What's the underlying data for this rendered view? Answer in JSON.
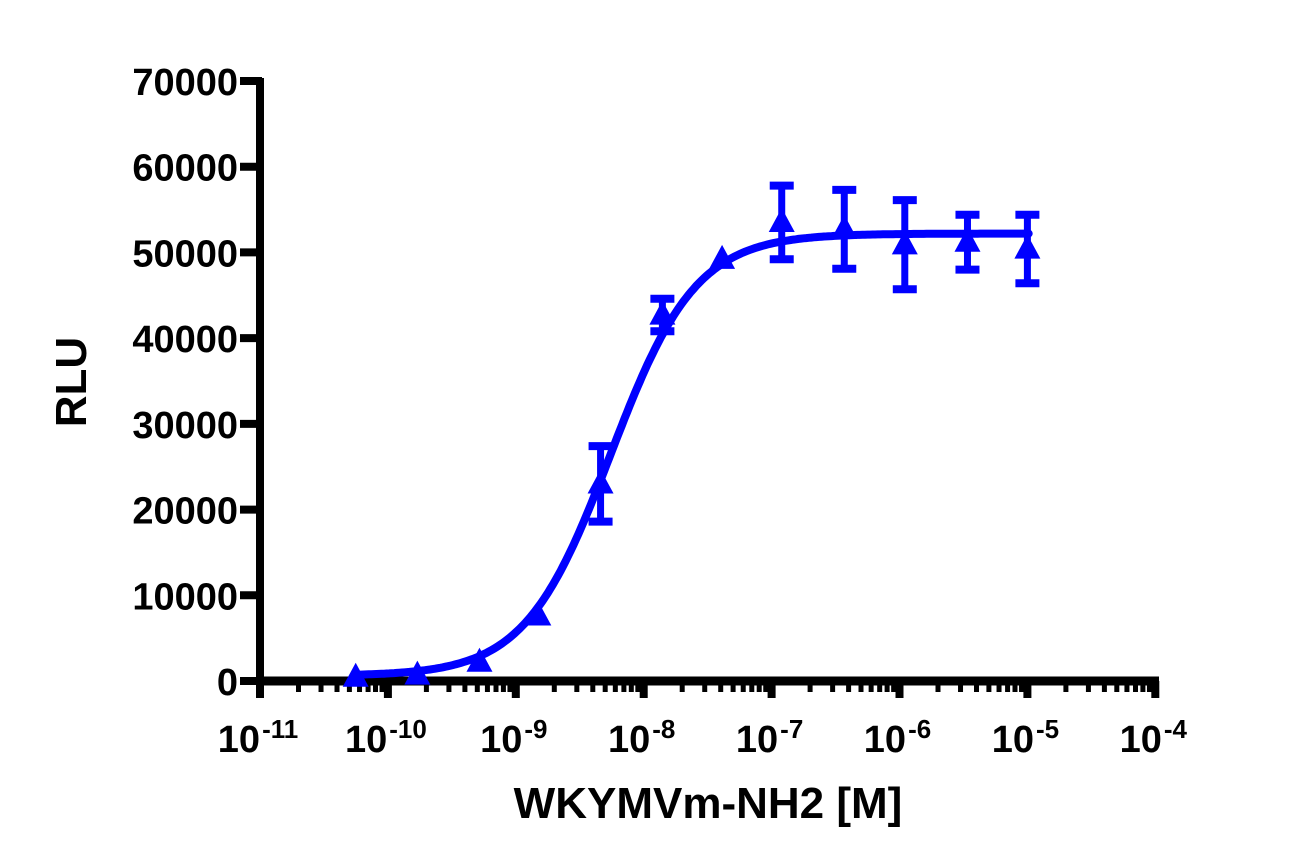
{
  "chart_data": {
    "type": "scatter",
    "title": "",
    "xlabel": "WKYMVm-NH2 [M]",
    "ylabel": "RLU",
    "xscale": "log",
    "xlim": [
      1e-11,
      0.0001
    ],
    "ylim": [
      0,
      70000
    ],
    "grid": false,
    "legend": null,
    "color": "#0000FF",
    "x_ticks": [
      {
        "base": "10",
        "exp": "-11"
      },
      {
        "base": "10",
        "exp": "-10"
      },
      {
        "base": "10",
        "exp": "-9"
      },
      {
        "base": "10",
        "exp": "-8"
      },
      {
        "base": "10",
        "exp": "-7"
      },
      {
        "base": "10",
        "exp": "-6"
      },
      {
        "base": "10",
        "exp": "-5"
      },
      {
        "base": "10",
        "exp": "-4"
      }
    ],
    "y_ticks": [
      "0",
      "10000",
      "20000",
      "30000",
      "40000",
      "50000",
      "60000",
      "70000"
    ],
    "series": [
      {
        "name": "WKYMVm-NH2",
        "marker": "triangle-up",
        "x": [
          5.6e-11,
          1.7e-10,
          5.2e-10,
          1.5e-09,
          4.6e-09,
          1.4e-08,
          4.1e-08,
          1.2e-07,
          3.7e-07,
          1.1e-06,
          3.4e-06,
          1e-05
        ],
        "y": [
          450,
          700,
          2200,
          7600,
          23000,
          42700,
          49200,
          53500,
          52700,
          50900,
          51200,
          50400
        ],
        "error": [
          0,
          0,
          0,
          0,
          4400,
          1900,
          0,
          4300,
          4600,
          5200,
          3200,
          4000
        ]
      }
    ],
    "fit": {
      "type": "4PL",
      "bottom": 600,
      "top": 52200,
      "logEC50": -8.26,
      "hill": 1.3
    }
  }
}
